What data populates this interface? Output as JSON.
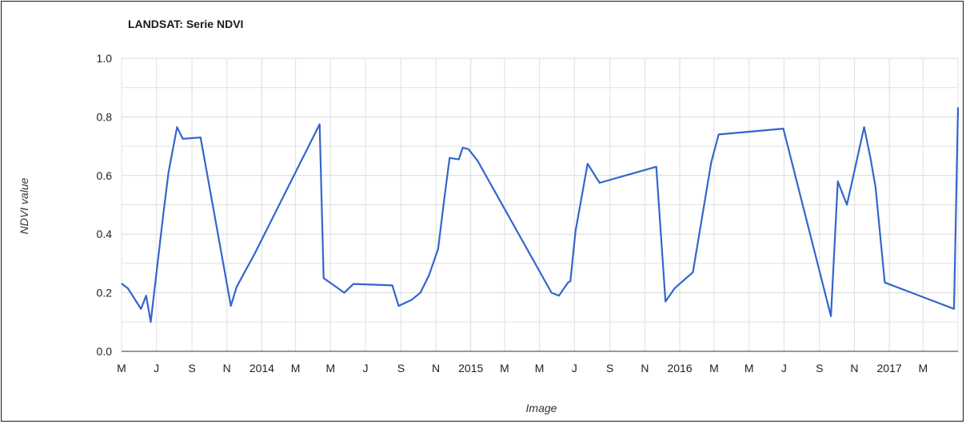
{
  "chart_data": {
    "type": "line",
    "title": "LANDSAT: Serie NDVI",
    "xlabel": "Image",
    "ylabel": "NDVI value",
    "ylim": [
      0,
      1
    ],
    "yticks": [
      "0.0",
      "0.2",
      "0.4",
      "0.6",
      "0.8",
      "1.0"
    ],
    "xlim": [
      "2013-05-01",
      "2017-05-01"
    ],
    "x_tick_dates": [
      "2013-05-01",
      "2013-07-01",
      "2013-09-01",
      "2013-11-01",
      "2014-01-01",
      "2014-03-01",
      "2014-05-01",
      "2014-07-01",
      "2014-09-01",
      "2014-11-01",
      "2015-01-01",
      "2015-03-01",
      "2015-05-01",
      "2015-07-01",
      "2015-09-01",
      "2015-11-01",
      "2016-01-01",
      "2016-03-01",
      "2016-05-01",
      "2016-07-01",
      "2016-09-01",
      "2016-11-01",
      "2017-01-01",
      "2017-03-01",
      "2017-05-01"
    ],
    "x_tick_labels": [
      "M",
      "J",
      "S",
      "N",
      "2014",
      "M",
      "M",
      "J",
      "S",
      "N",
      "2015",
      "M",
      "M",
      "J",
      "S",
      "N",
      "2016",
      "M",
      "M",
      "J",
      "S",
      "N",
      "2017",
      "M",
      ""
    ],
    "series_color": "#3366cc",
    "grid": true,
    "series": [
      {
        "x": [
          "2013-05-02",
          "2013-05-12",
          "2013-06-04",
          "2013-06-13",
          "2013-06-21",
          "2013-07-13",
          "2013-07-22",
          "2013-08-06",
          "2013-08-16",
          "2013-09-16",
          "2013-11-08",
          "2013-11-18",
          "2013-12-20",
          "2014-04-12",
          "2014-04-19",
          "2014-05-07",
          "2014-05-25",
          "2014-06-10",
          "2014-08-17",
          "2014-08-28",
          "2014-09-19",
          "2014-10-05",
          "2014-10-20",
          "2014-11-05",
          "2014-11-15",
          "2014-11-25",
          "2014-12-11",
          "2014-12-18",
          "2014-12-28",
          "2015-01-13",
          "2015-05-22",
          "2015-06-04",
          "2015-06-20",
          "2015-06-24",
          "2015-07-03",
          "2015-07-24",
          "2015-08-14",
          "2015-11-21",
          "2015-12-07",
          "2015-12-23",
          "2016-01-24",
          "2016-02-25",
          "2016-03-09",
          "2016-06-30",
          "2016-09-21",
          "2016-10-03",
          "2016-10-19",
          "2016-11-18",
          "2016-11-29",
          "2016-12-08",
          "2016-12-24",
          "2017-04-24",
          "2017-05-04",
          "2017-05-10"
        ],
        "values": [
          0.23,
          0.215,
          0.145,
          0.19,
          0.1,
          0.47,
          0.61,
          0.765,
          0.725,
          0.73,
          0.155,
          0.22,
          0.335,
          0.775,
          0.25,
          0.225,
          0.2,
          0.23,
          0.225,
          0.155,
          0.175,
          0.2,
          0.26,
          0.35,
          0.51,
          0.66,
          0.655,
          0.695,
          0.69,
          0.65,
          0.2,
          0.19,
          0.235,
          0.24,
          0.41,
          0.64,
          0.575,
          0.63,
          0.17,
          0.215,
          0.27,
          0.645,
          0.74,
          0.76,
          0.12,
          0.58,
          0.5,
          0.765,
          0.66,
          0.56,
          0.235,
          0.145,
          0.83,
          0.8
        ]
      }
    ]
  }
}
